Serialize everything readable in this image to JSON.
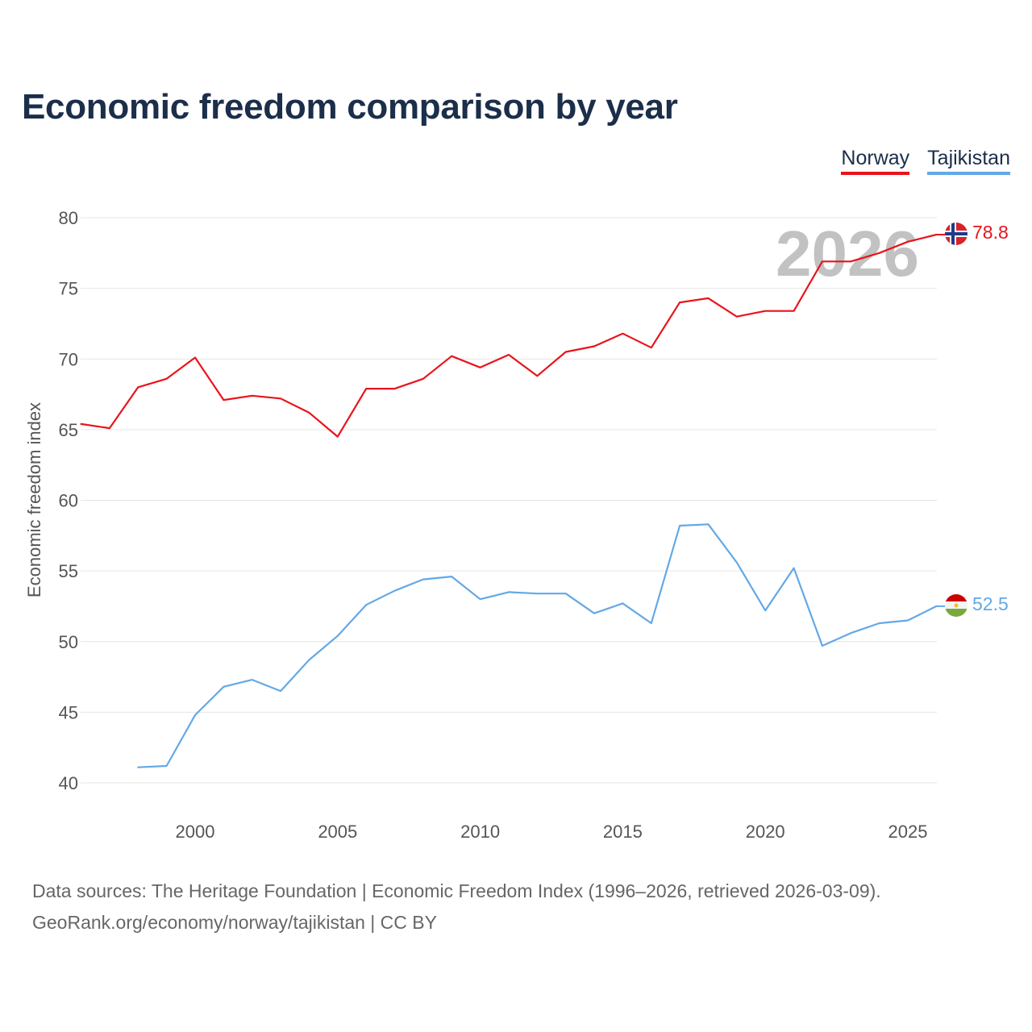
{
  "title": "Economic freedom comparison by year",
  "legend": {
    "norway": "Norway",
    "tajikistan": "Tajikistan"
  },
  "colors": {
    "norway": "#e8141c",
    "tajikistan": "#64a8e6",
    "grid": "#e6e6e6",
    "title": "#1b2e4a"
  },
  "footer": {
    "source": "Data sources: The Heritage Foundation | Economic Freedom Index (1996–2026, retrieved 2026-03-09).",
    "credit": "GeoRank.org/economy/norway/tajikistan | CC BY"
  },
  "chart_data": {
    "type": "line",
    "title": "Economic freedom comparison by year",
    "xlabel": "",
    "ylabel": "Economic freedom index",
    "year_watermark": "2026",
    "xlim": [
      1996,
      2026
    ],
    "ylim": [
      38,
      82
    ],
    "x_ticks": [
      "2000",
      "2005",
      "2010",
      "2015",
      "2020",
      "2025"
    ],
    "y_ticks": [
      "40",
      "45",
      "50",
      "55",
      "60",
      "65",
      "70",
      "75",
      "80"
    ],
    "grid": true,
    "legend_position": "top-right",
    "series": [
      {
        "name": "Norway",
        "color": "#e8141c",
        "end_label": "78.8",
        "flag": "norway-flag-icon",
        "x": [
          1996,
          1997,
          1998,
          1999,
          2000,
          2001,
          2002,
          2003,
          2004,
          2005,
          2006,
          2007,
          2008,
          2009,
          2010,
          2011,
          2012,
          2013,
          2014,
          2015,
          2016,
          2017,
          2018,
          2019,
          2020,
          2021,
          2022,
          2023,
          2024,
          2025,
          2026
        ],
        "values": [
          65.4,
          65.1,
          68.0,
          68.6,
          70.1,
          67.1,
          67.4,
          67.2,
          66.2,
          64.5,
          67.9,
          67.9,
          68.6,
          70.2,
          69.4,
          70.3,
          68.8,
          70.5,
          70.9,
          71.8,
          70.8,
          74.0,
          74.3,
          73.0,
          73.4,
          73.4,
          76.9,
          76.9,
          77.5,
          78.3,
          78.8
        ]
      },
      {
        "name": "Tajikistan",
        "color": "#64a8e6",
        "end_label": "52.5",
        "flag": "tajikistan-flag-icon",
        "x": [
          1998,
          1999,
          2000,
          2001,
          2002,
          2003,
          2004,
          2005,
          2006,
          2007,
          2008,
          2009,
          2010,
          2011,
          2012,
          2013,
          2014,
          2015,
          2016,
          2017,
          2018,
          2019,
          2020,
          2021,
          2022,
          2023,
          2024,
          2025,
          2026
        ],
        "values": [
          41.1,
          41.2,
          44.8,
          46.8,
          47.3,
          46.5,
          48.7,
          50.4,
          52.6,
          53.6,
          54.4,
          54.6,
          53.0,
          53.5,
          53.4,
          53.4,
          52.0,
          52.7,
          51.3,
          58.2,
          58.3,
          55.6,
          52.2,
          55.2,
          49.7,
          50.6,
          51.3,
          51.5,
          52.5
        ]
      }
    ]
  }
}
